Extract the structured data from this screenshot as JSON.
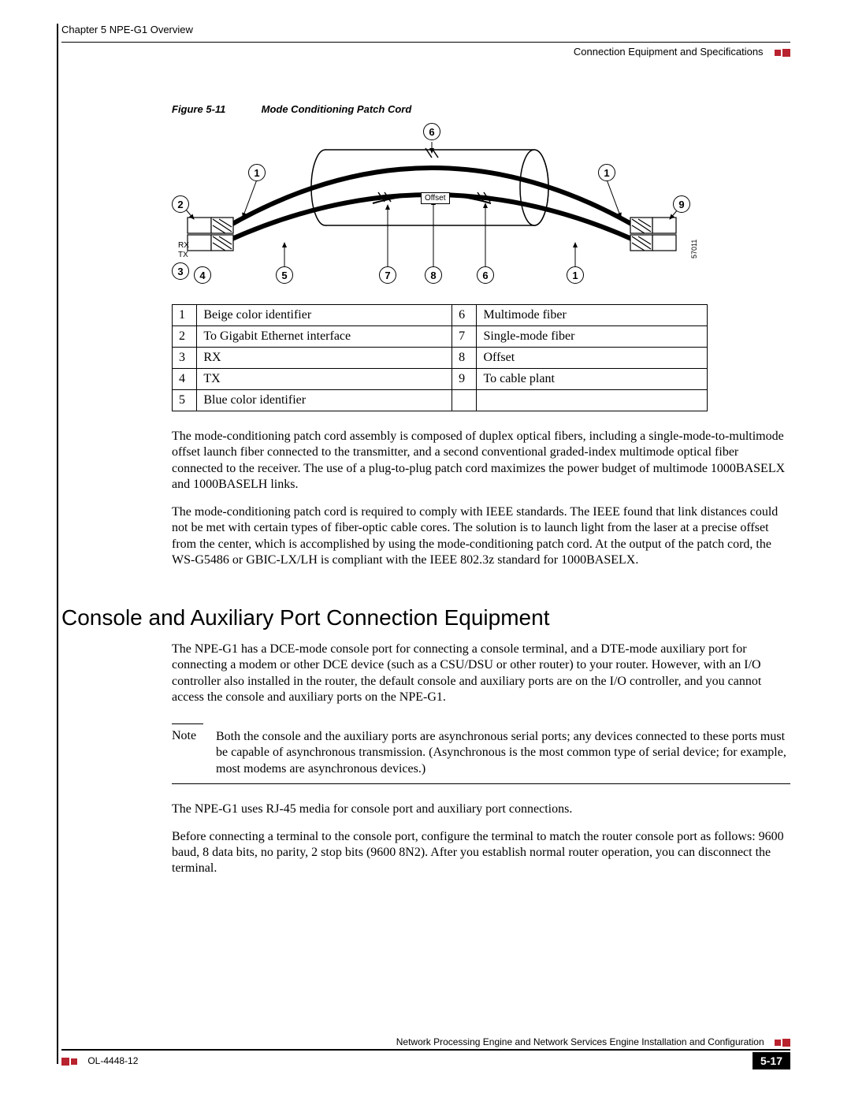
{
  "header": {
    "chapter": "Chapter 5    NPE-G1 Overview",
    "section": "Connection Equipment and Specifications"
  },
  "figure": {
    "num": "Figure 5-11",
    "title": "Mode Conditioning Patch Cord",
    "offset_label": "Offset",
    "rx_label": "RX",
    "tx_label": "TX",
    "side_id": "57011",
    "callouts_top": {
      "c6": "6",
      "c1l": "1",
      "c1r": "1",
      "c2": "2",
      "c9": "9"
    },
    "callouts_bottom": {
      "c3": "3",
      "c4": "4",
      "c5": "5",
      "c7": "7",
      "c8": "8",
      "c6b": "6",
      "c1b": "1"
    }
  },
  "legend": {
    "rows": [
      {
        "n1": "1",
        "d1": "Beige color identifier",
        "n2": "6",
        "d2": "Multimode fiber"
      },
      {
        "n1": "2",
        "d1": "To Gigabit Ethernet interface",
        "n2": "7",
        "d2": "Single-mode fiber"
      },
      {
        "n1": "3",
        "d1": "RX",
        "n2": "8",
        "d2": "Offset"
      },
      {
        "n1": "4",
        "d1": "TX",
        "n2": "9",
        "d2": "To cable plant"
      },
      {
        "n1": "5",
        "d1": "Blue color identifier",
        "n2": "",
        "d2": ""
      }
    ]
  },
  "paras": {
    "p1": "The mode-conditioning patch cord assembly is composed of duplex optical fibers, including a single-mode-to-multimode offset launch fiber connected to the transmitter, and a second conventional graded-index multimode optical fiber connected to the receiver. The use of a plug-to-plug patch cord maximizes the power budget of multimode 1000BASELX and 1000BASELH links.",
    "p2": "The mode-conditioning patch cord is required to comply with IEEE standards. The IEEE found that link distances could not be met with certain types of fiber-optic cable cores. The solution is to launch light from the laser at a precise offset from the center, which is accomplished by using the mode-conditioning patch cord. At the output of the patch cord, the WS-G5486 or GBIC-LX/LH is compliant with the IEEE 802.3z standard for 1000BASELX.",
    "p3": "The NPE-G1 has a DCE-mode console port for connecting a console terminal, and a DTE-mode auxiliary port for connecting a modem or other DCE device (such as a CSU/DSU or other router) to your router. However, with an I/O controller also installed in the router, the default console and auxiliary ports are on the I/O controller, and you cannot access the console and auxiliary ports on the NPE-G1.",
    "p4": "The NPE-G1 uses RJ-45 media for console port and auxiliary port connections.",
    "p5": "Before connecting a terminal to the console port, configure the terminal to match the router console port as follows: 9600 baud, 8 data bits, no parity, 2 stop bits (9600 8N2). After you establish normal router operation, you can disconnect the terminal."
  },
  "h2": "Console and Auxiliary Port Connection Equipment",
  "note": {
    "label": "Note",
    "text": "Both the console and the auxiliary ports are asynchronous serial ports; any devices connected to these ports must be capable of asynchronous transmission. (Asynchronous is the most common type of serial device; for example, most modems are asynchronous devices.)"
  },
  "footer": {
    "book": "Network Processing Engine and Network Services Engine Installation and Configuration",
    "docnum": "OL-4448-12",
    "page": "5-17"
  },
  "colors": {
    "accent": "#b8232f"
  }
}
